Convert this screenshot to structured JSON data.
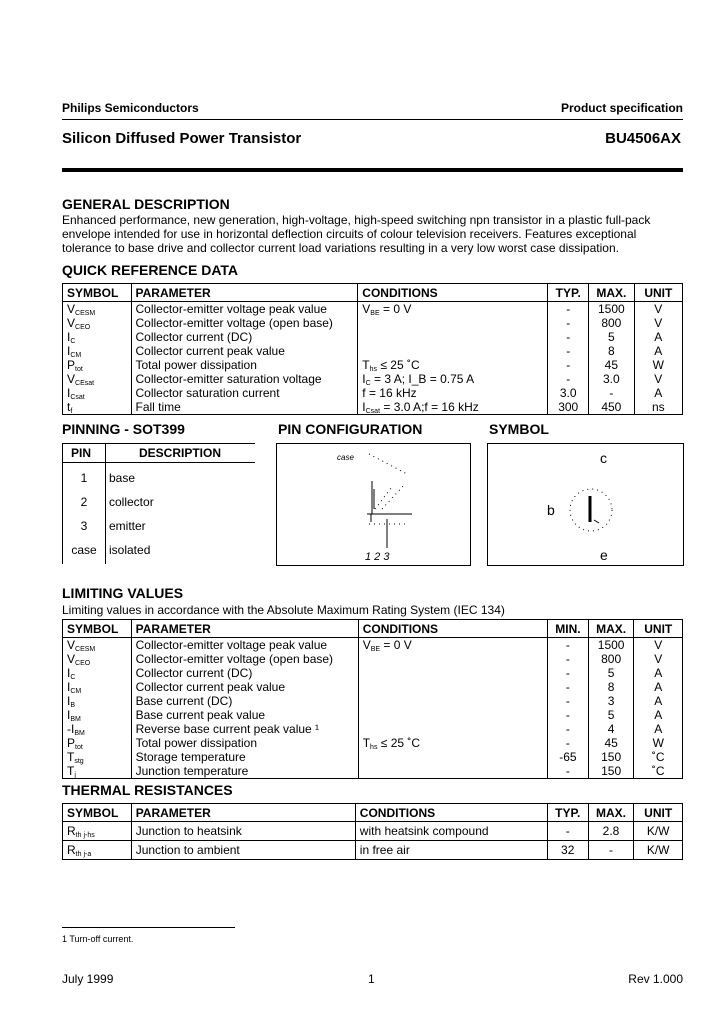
{
  "header": {
    "company": "Philips Semiconductors",
    "doc_type": "Product specification",
    "title": "Silicon Diffused Power Transistor",
    "part": "BU4506AX"
  },
  "general": {
    "heading": "GENERAL DESCRIPTION",
    "lines": [
      "Enhanced performance, new generation, high-voltage, high-speed switching npn transistor in a plastic full-pack",
      "envelope intended for use in horizontal deflection circuits of colour television receivers. Features exceptional",
      "tolerance to base drive and collector current load variations resulting in a very low worst case dissipation."
    ]
  },
  "quick_ref": {
    "heading": "QUICK REFERENCE DATA",
    "columns": [
      "SYMBOL",
      "PARAMETER",
      "CONDITIONS",
      "TYP.",
      "MAX.",
      "UNIT"
    ],
    "rows": [
      {
        "sym": "V",
        "sub": "CESM",
        "param": "Collector-emitter voltage peak value",
        "cond": "V",
        "cond_sub": "BE",
        "cond_rest": " = 0 V",
        "typ": "-",
        "max": "1500",
        "unit": "V"
      },
      {
        "sym": "V",
        "sub": "CEO",
        "param": "Collector-emitter voltage (open base)",
        "cond": "",
        "cond_sub": "",
        "cond_rest": "",
        "typ": "-",
        "max": "800",
        "unit": "V"
      },
      {
        "sym": "I",
        "sub": "C",
        "param": "Collector current (DC)",
        "cond": "",
        "cond_sub": "",
        "cond_rest": "",
        "typ": "-",
        "max": "5",
        "unit": "A"
      },
      {
        "sym": "I",
        "sub": "CM",
        "param": "Collector current peak value",
        "cond": "",
        "cond_sub": "",
        "cond_rest": "",
        "typ": "-",
        "max": "8",
        "unit": "A"
      },
      {
        "sym": "P",
        "sub": "tot",
        "param": "Total power dissipation",
        "cond": "T",
        "cond_sub": "hs",
        "cond_rest": " ≤ 25 ˚C",
        "typ": "-",
        "max": "45",
        "unit": "W"
      },
      {
        "sym": "V",
        "sub": "CEsat",
        "param": "Collector-emitter saturation voltage",
        "cond": "I",
        "cond_sub": "C",
        "cond_rest": " = 3 A; I_B = 0.75 A",
        "typ": "-",
        "max": "3.0",
        "unit": "V"
      },
      {
        "sym": "I",
        "sub": "Csat",
        "param": "Collector saturation current",
        "cond": "f = 16 kHz",
        "cond_sub": "",
        "cond_rest": "",
        "typ": "3.0",
        "max": "-",
        "unit": "A"
      },
      {
        "sym": "t",
        "sub": "f",
        "param": "Fall time",
        "cond": "I",
        "cond_sub": "Csat",
        "cond_rest": " = 3.0 A;f = 16 kHz",
        "typ": "300",
        "max": "450",
        "unit": "ns"
      }
    ]
  },
  "pinning": {
    "heading": "PINNING - SOT399",
    "columns": [
      "PIN",
      "DESCRIPTION"
    ],
    "rows": [
      {
        "pin": "1",
        "desc": "base"
      },
      {
        "pin": "2",
        "desc": "collector"
      },
      {
        "pin": "3",
        "desc": "emitter"
      },
      {
        "pin": "case",
        "desc": "isolated"
      }
    ]
  },
  "pin_config": {
    "heading": "PIN CONFIGURATION",
    "case_label": "case",
    "pins_label": "1 2 3"
  },
  "symbol": {
    "heading": "SYMBOL",
    "c": "c",
    "b": "b",
    "e": "e"
  },
  "limiting": {
    "heading": "LIMITING VALUES",
    "intro": "Limiting values in accordance with the Absolute Maximum Rating System (IEC 134)",
    "columns": [
      "SYMBOL",
      "PARAMETER",
      "CONDITIONS",
      "MIN.",
      "MAX.",
      "UNIT"
    ],
    "rows": [
      {
        "sym": "V",
        "sub": "CESM",
        "param": "Collector-emitter voltage peak value",
        "cond": "V",
        "cond_sub": "BE",
        "cond_rest": " = 0 V",
        "min": "-",
        "max": "1500",
        "unit": "V"
      },
      {
        "sym": "V",
        "sub": "CEO",
        "param": "Collector-emitter voltage (open base)",
        "cond": "",
        "cond_sub": "",
        "cond_rest": "",
        "min": "-",
        "max": "800",
        "unit": "V"
      },
      {
        "sym": "I",
        "sub": "C",
        "param": "Collector current (DC)",
        "cond": "",
        "cond_sub": "",
        "cond_rest": "",
        "min": "-",
        "max": "5",
        "unit": "A"
      },
      {
        "sym": "I",
        "sub": "CM",
        "param": "Collector current peak value",
        "cond": "",
        "cond_sub": "",
        "cond_rest": "",
        "min": "-",
        "max": "8",
        "unit": "A"
      },
      {
        "sym": "I",
        "sub": "B",
        "param": "Base current (DC)",
        "cond": "",
        "cond_sub": "",
        "cond_rest": "",
        "min": "-",
        "max": "3",
        "unit": "A"
      },
      {
        "sym": "I",
        "sub": "BM",
        "param": "Base current peak value",
        "cond": "",
        "cond_sub": "",
        "cond_rest": "",
        "min": "-",
        "max": "5",
        "unit": "A"
      },
      {
        "sym": "-I",
        "sub": "BM",
        "param": "Reverse base current peak value ¹",
        "cond": "",
        "cond_sub": "",
        "cond_rest": "",
        "min": "-",
        "max": "4",
        "unit": "A"
      },
      {
        "sym": "P",
        "sub": "tot",
        "param": "Total power dissipation",
        "cond": "T",
        "cond_sub": "hs",
        "cond_rest": " ≤ 25 ˚C",
        "min": "-",
        "max": "45",
        "unit": "W"
      },
      {
        "sym": "T",
        "sub": "stg",
        "param": "Storage temperature",
        "cond": "",
        "cond_sub": "",
        "cond_rest": "",
        "min": "-65",
        "max": "150",
        "unit": "˚C"
      },
      {
        "sym": "T",
        "sub": "j",
        "param": "Junction temperature",
        "cond": "",
        "cond_sub": "",
        "cond_rest": "",
        "min": "-",
        "max": "150",
        "unit": "˚C"
      }
    ]
  },
  "thermal": {
    "heading": "THERMAL RESISTANCES",
    "columns": [
      "SYMBOL",
      "PARAMETER",
      "CONDITIONS",
      "TYP.",
      "MAX.",
      "UNIT"
    ],
    "rows": [
      {
        "sym": "R",
        "sub": "th j-hs",
        "param": "Junction to heatsink",
        "cond": "with heatsink compound",
        "typ": "-",
        "max": "2.8",
        "unit": "K/W"
      },
      {
        "sym": "R",
        "sub": "th j-a",
        "param": "Junction to ambient",
        "cond": "in free air",
        "typ": "32",
        "max": "-",
        "unit": "K/W"
      }
    ]
  },
  "footnote": "1 Turn-off current.",
  "footer": {
    "date": "July 1999",
    "page": "1",
    "rev": "Rev 1.000"
  }
}
